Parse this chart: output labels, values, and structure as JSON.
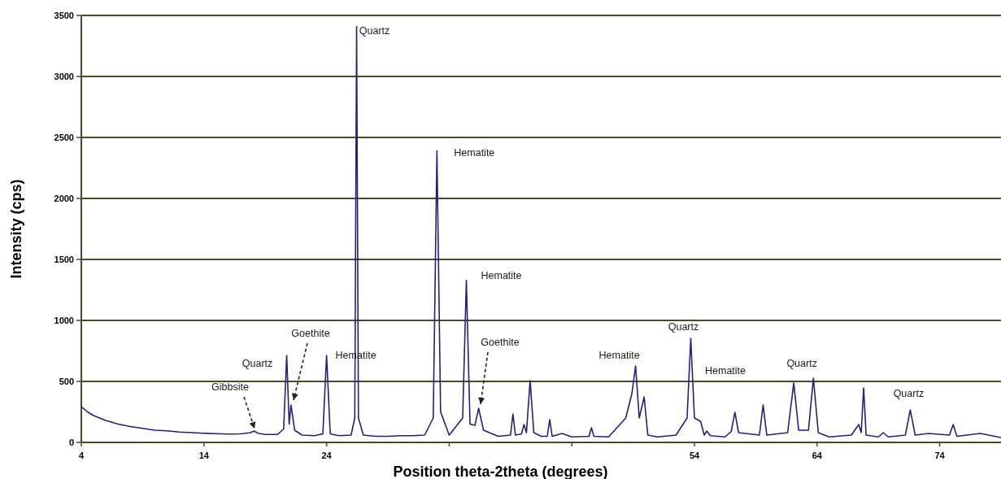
{
  "chart_data": {
    "type": "line",
    "xlabel": "Position theta-2theta (degrees)",
    "ylabel": "Intensity (cps)",
    "xlim": [
      4,
      79
    ],
    "xticks": [
      4,
      14,
      24,
      {
        "value": 34,
        "label": null
      },
      {
        "value": 44,
        "label": null
      },
      54,
      64,
      74
    ],
    "ylim": [
      0,
      3500
    ],
    "yticks": [
      0,
      500,
      1000,
      1500,
      2000,
      2500,
      3000,
      3500
    ],
    "grid": "y",
    "marker": "none",
    "line_style": "solid",
    "series": [
      {
        "color": "#23236e",
        "x": [
          4,
          4.5,
          5,
          6,
          7,
          8,
          9,
          10,
          11,
          12,
          13,
          14,
          15,
          16,
          17,
          17.8,
          18.1,
          18.4,
          19,
          20,
          20.5,
          20.75,
          20.95,
          21.1,
          21.4,
          22,
          23,
          23.7,
          24.0,
          24.3,
          25,
          26,
          26.3,
          26.45,
          26.6,
          27,
          28,
          29,
          30,
          31,
          32,
          32.7,
          33.0,
          33.3,
          34,
          35.1,
          35.4,
          35.7,
          36.1,
          36.4,
          36.8,
          38,
          39.0,
          39.2,
          39.4,
          39.9,
          40.1,
          40.3,
          40.6,
          40.9,
          41.5,
          42.0,
          42.2,
          42.4,
          43.2,
          44,
          45.4,
          45.6,
          45.8,
          47,
          48.4,
          48.9,
          49.2,
          49.5,
          49.9,
          50.2,
          51,
          52.5,
          53.4,
          53.7,
          54.0,
          54.5,
          54.8,
          55.0,
          55.3,
          56.5,
          57.0,
          57.3,
          57.6,
          59.3,
          59.6,
          59.9,
          61.6,
          62.1,
          62.5,
          63.3,
          63.7,
          64.1,
          65,
          66.8,
          67.4,
          67.6,
          67.8,
          68.0,
          69,
          69.4,
          69.8,
          71.2,
          71.6,
          72.0,
          73.1,
          74.8,
          75.1,
          75.4,
          77.3,
          79
        ],
        "values": [
          293,
          250,
          220,
          180,
          150,
          130,
          115,
          100,
          95,
          85,
          80,
          75,
          72,
          68,
          70,
          80,
          93,
          75,
          65,
          65,
          110,
          713,
          150,
          307,
          100,
          60,
          55,
          70,
          713,
          70,
          55,
          60,
          200,
          3410,
          200,
          60,
          50,
          50,
          55,
          55,
          60,
          200,
          2390,
          250,
          60,
          200,
          1330,
          150,
          140,
          280,
          100,
          50,
          60,
          233,
          60,
          70,
          147,
          80,
          507,
          80,
          50,
          50,
          187,
          50,
          73,
          45,
          50,
          120,
          50,
          45,
          200,
          400,
          627,
          200,
          373,
          60,
          45,
          60,
          200,
          853,
          200,
          173,
          60,
          93,
          55,
          45,
          90,
          247,
          80,
          60,
          307,
          60,
          80,
          487,
          100,
          100,
          527,
          80,
          45,
          60,
          147,
          80,
          447,
          60,
          45,
          80,
          45,
          60,
          267,
          60,
          73,
          60,
          147,
          50,
          73,
          40
        ]
      }
    ],
    "annotations": [
      "Gibbsite",
      {
        "text": "Quartz",
        "x": 20.75,
        "y": 713
      },
      "Goethite",
      {
        "text": "Hematite",
        "x": 24.0,
        "y": 713
      },
      {
        "text": "Quartz",
        "x": 26.45,
        "y": 3410
      },
      {
        "text": "Hematite",
        "x": 33.0,
        "y": 2390
      },
      {
        "text": "Hematite",
        "x": 35.4,
        "y": 1330
      },
      "Goethite",
      {
        "text": "Hematite",
        "x": 49.2,
        "y": 627
      },
      {
        "text": "Quartz",
        "x": 53.7,
        "y": 853
      },
      "Hematite",
      {
        "text": "Quartz",
        "x": 62.1,
        "y": 487
      },
      {
        "text": "Quartz",
        "x": 71.6,
        "y": 267
      }
    ]
  }
}
